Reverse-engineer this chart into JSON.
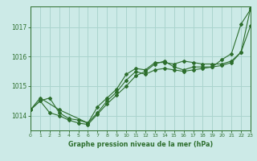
{
  "title": "Graphe pression niveau de la mer (hPa)",
  "bg_color": "#cceae7",
  "grid_color": "#aad4ce",
  "line_color": "#2d6e2d",
  "xlim": [
    0,
    23
  ],
  "ylim": [
    1013.5,
    1017.7
  ],
  "yticks": [
    1014,
    1015,
    1016,
    1017
  ],
  "xticks": [
    0,
    1,
    2,
    3,
    4,
    5,
    6,
    7,
    8,
    9,
    10,
    11,
    12,
    13,
    14,
    15,
    16,
    17,
    18,
    19,
    20,
    21,
    22,
    23
  ],
  "series": [
    {
      "x": [
        0,
        1,
        2,
        3,
        4,
        5,
        6,
        7,
        8,
        9,
        10,
        11,
        12,
        13,
        14,
        15,
        16,
        17,
        18,
        19,
        20,
        21,
        22,
        23
      ],
      "y": [
        1014.2,
        1014.5,
        1014.6,
        1014.1,
        1013.9,
        1013.85,
        1013.75,
        1014.1,
        1014.5,
        1014.8,
        1015.2,
        1015.5,
        1015.4,
        1015.55,
        1015.6,
        1015.55,
        1015.5,
        1015.55,
        1015.6,
        1015.65,
        1015.9,
        1016.1,
        1017.1,
        1017.6
      ]
    },
    {
      "x": [
        0,
        1,
        2,
        3,
        4,
        5,
        6,
        7,
        8,
        9,
        10,
        11,
        12,
        13,
        14,
        15,
        16,
        17,
        18,
        19,
        20,
        21,
        22,
        23
      ],
      "y": [
        1014.2,
        1014.5,
        1014.1,
        1014.0,
        1013.85,
        1013.75,
        1013.7,
        1014.05,
        1014.4,
        1014.7,
        1015.0,
        1015.35,
        1015.5,
        1015.75,
        1015.85,
        1015.65,
        1015.55,
        1015.65,
        1015.65,
        1015.65,
        1015.7,
        1015.8,
        1016.15,
        1017.05
      ]
    },
    {
      "x": [
        0,
        1,
        3,
        6,
        7,
        8,
        9,
        10,
        11,
        12,
        13,
        14,
        15,
        16,
        17,
        18,
        19,
        20,
        21,
        22,
        23
      ],
      "y": [
        1014.2,
        1014.6,
        1014.2,
        1013.75,
        1014.3,
        1014.6,
        1014.9,
        1015.4,
        1015.6,
        1015.55,
        1015.8,
        1015.8,
        1015.75,
        1015.85,
        1015.8,
        1015.75,
        1015.75,
        1015.75,
        1015.85,
        1016.15,
        1017.65
      ]
    }
  ]
}
